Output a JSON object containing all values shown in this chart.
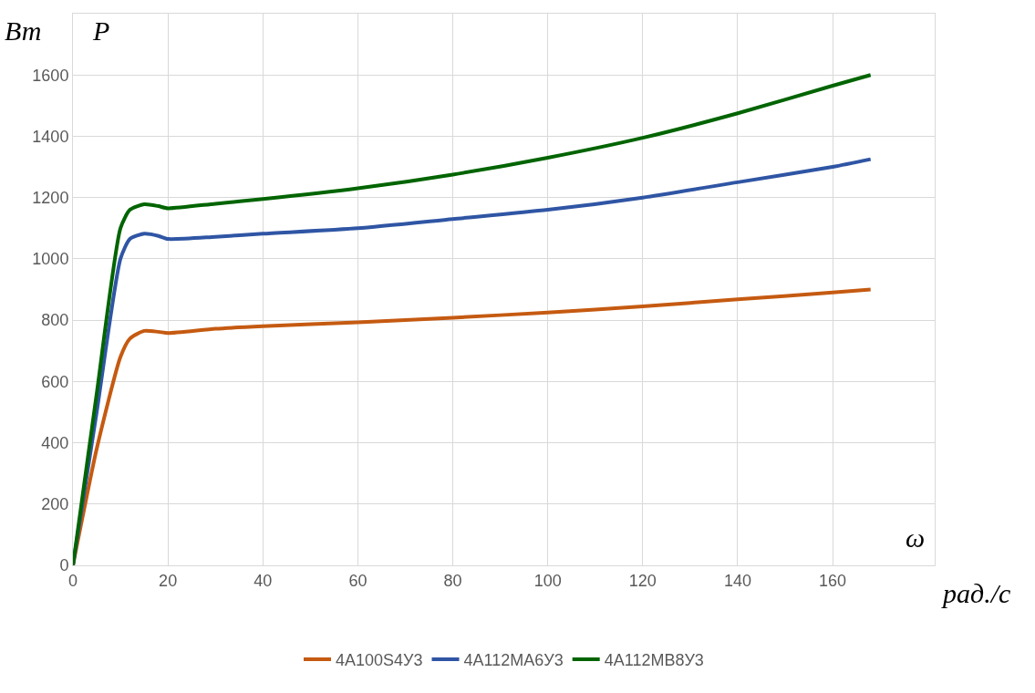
{
  "chart_data": {
    "type": "line",
    "xlabel": "рад./с",
    "ylabel": "Вт",
    "annotations": [
      "P",
      "ω"
    ],
    "x": [
      0,
      5,
      10,
      12,
      15,
      18,
      20,
      30,
      40,
      60,
      80,
      100,
      120,
      140,
      160,
      168
    ],
    "series": [
      {
        "name": "4A100S4У3",
        "color": "#c55a11",
        "values": [
          0,
          380,
          680,
          740,
          765,
          762,
          758,
          772,
          780,
          793,
          808,
          825,
          845,
          868,
          890,
          900
        ]
      },
      {
        "name": "4A112MA6У3",
        "color": "#2f55a4",
        "values": [
          0,
          500,
          1000,
          1065,
          1082,
          1075,
          1065,
          1072,
          1082,
          1100,
          1130,
          1160,
          1200,
          1250,
          1300,
          1325
        ]
      },
      {
        "name": "4A112MB8У3",
        "color": "#006400",
        "values": [
          0,
          560,
          1100,
          1160,
          1178,
          1172,
          1165,
          1180,
          1195,
          1230,
          1275,
          1330,
          1395,
          1475,
          1565,
          1600
        ]
      }
    ],
    "xlim": [
      0,
      181.5
    ],
    "ylim": [
      0,
      1800
    ],
    "xticks": [
      0,
      20,
      40,
      60,
      80,
      100,
      120,
      140,
      160
    ],
    "yticks": [
      0,
      200,
      400,
      600,
      800,
      1000,
      1200,
      1400,
      1600
    ],
    "grid": true,
    "legend": "bottom",
    "marker": "none",
    "line_style": "solid"
  }
}
